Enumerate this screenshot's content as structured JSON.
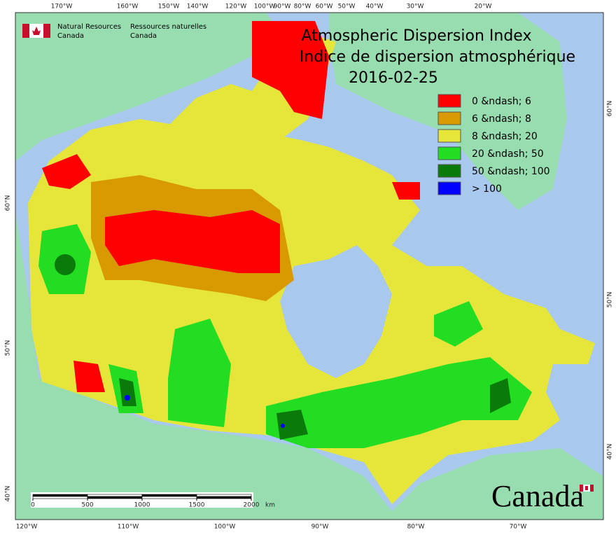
{
  "header": {
    "agency_en": [
      "Natural Resources",
      "Canada"
    ],
    "agency_fr": [
      "Ressources naturelles",
      "Canada"
    ]
  },
  "title": [
    "Atmospheric Dispersion Index",
    "Indice de dispersion atmosphérique",
    "2016-02-25"
  ],
  "legend": [
    {
      "label": "0 &ndash; 6",
      "color": "#ff0000"
    },
    {
      "label": "6 &ndash; 8",
      "color": "#d89a00"
    },
    {
      "label": "8 &ndash; 20",
      "color": "#e6e63a"
    },
    {
      "label": "20 &ndash; 50",
      "color": "#22dd22"
    },
    {
      "label": "50 &ndash; 100",
      "color": "#0a7a0a"
    },
    {
      "label": "> 100",
      "color": "#0000ff"
    }
  ],
  "top_labels": [
    "170°W",
    "160°W",
    "150°W",
    "140°W",
    "120°W",
    "100°W",
    "90°W",
    "80°W",
    "60°W",
    "50°W",
    "40°W",
    "30°W",
    "20°W"
  ],
  "bottom_labels": [
    "120°W",
    "110°W",
    "100°W",
    "90°W",
    "80°W",
    "70°W"
  ],
  "left_labels": [
    "60°N",
    "50°N",
    "40°N"
  ],
  "right_labels": [
    "60°N",
    "50°N",
    "40°N"
  ],
  "scale": {
    "ticks": [
      0,
      500,
      1000,
      1500,
      2000
    ],
    "unit": "km"
  },
  "wordmark": "Canada"
}
